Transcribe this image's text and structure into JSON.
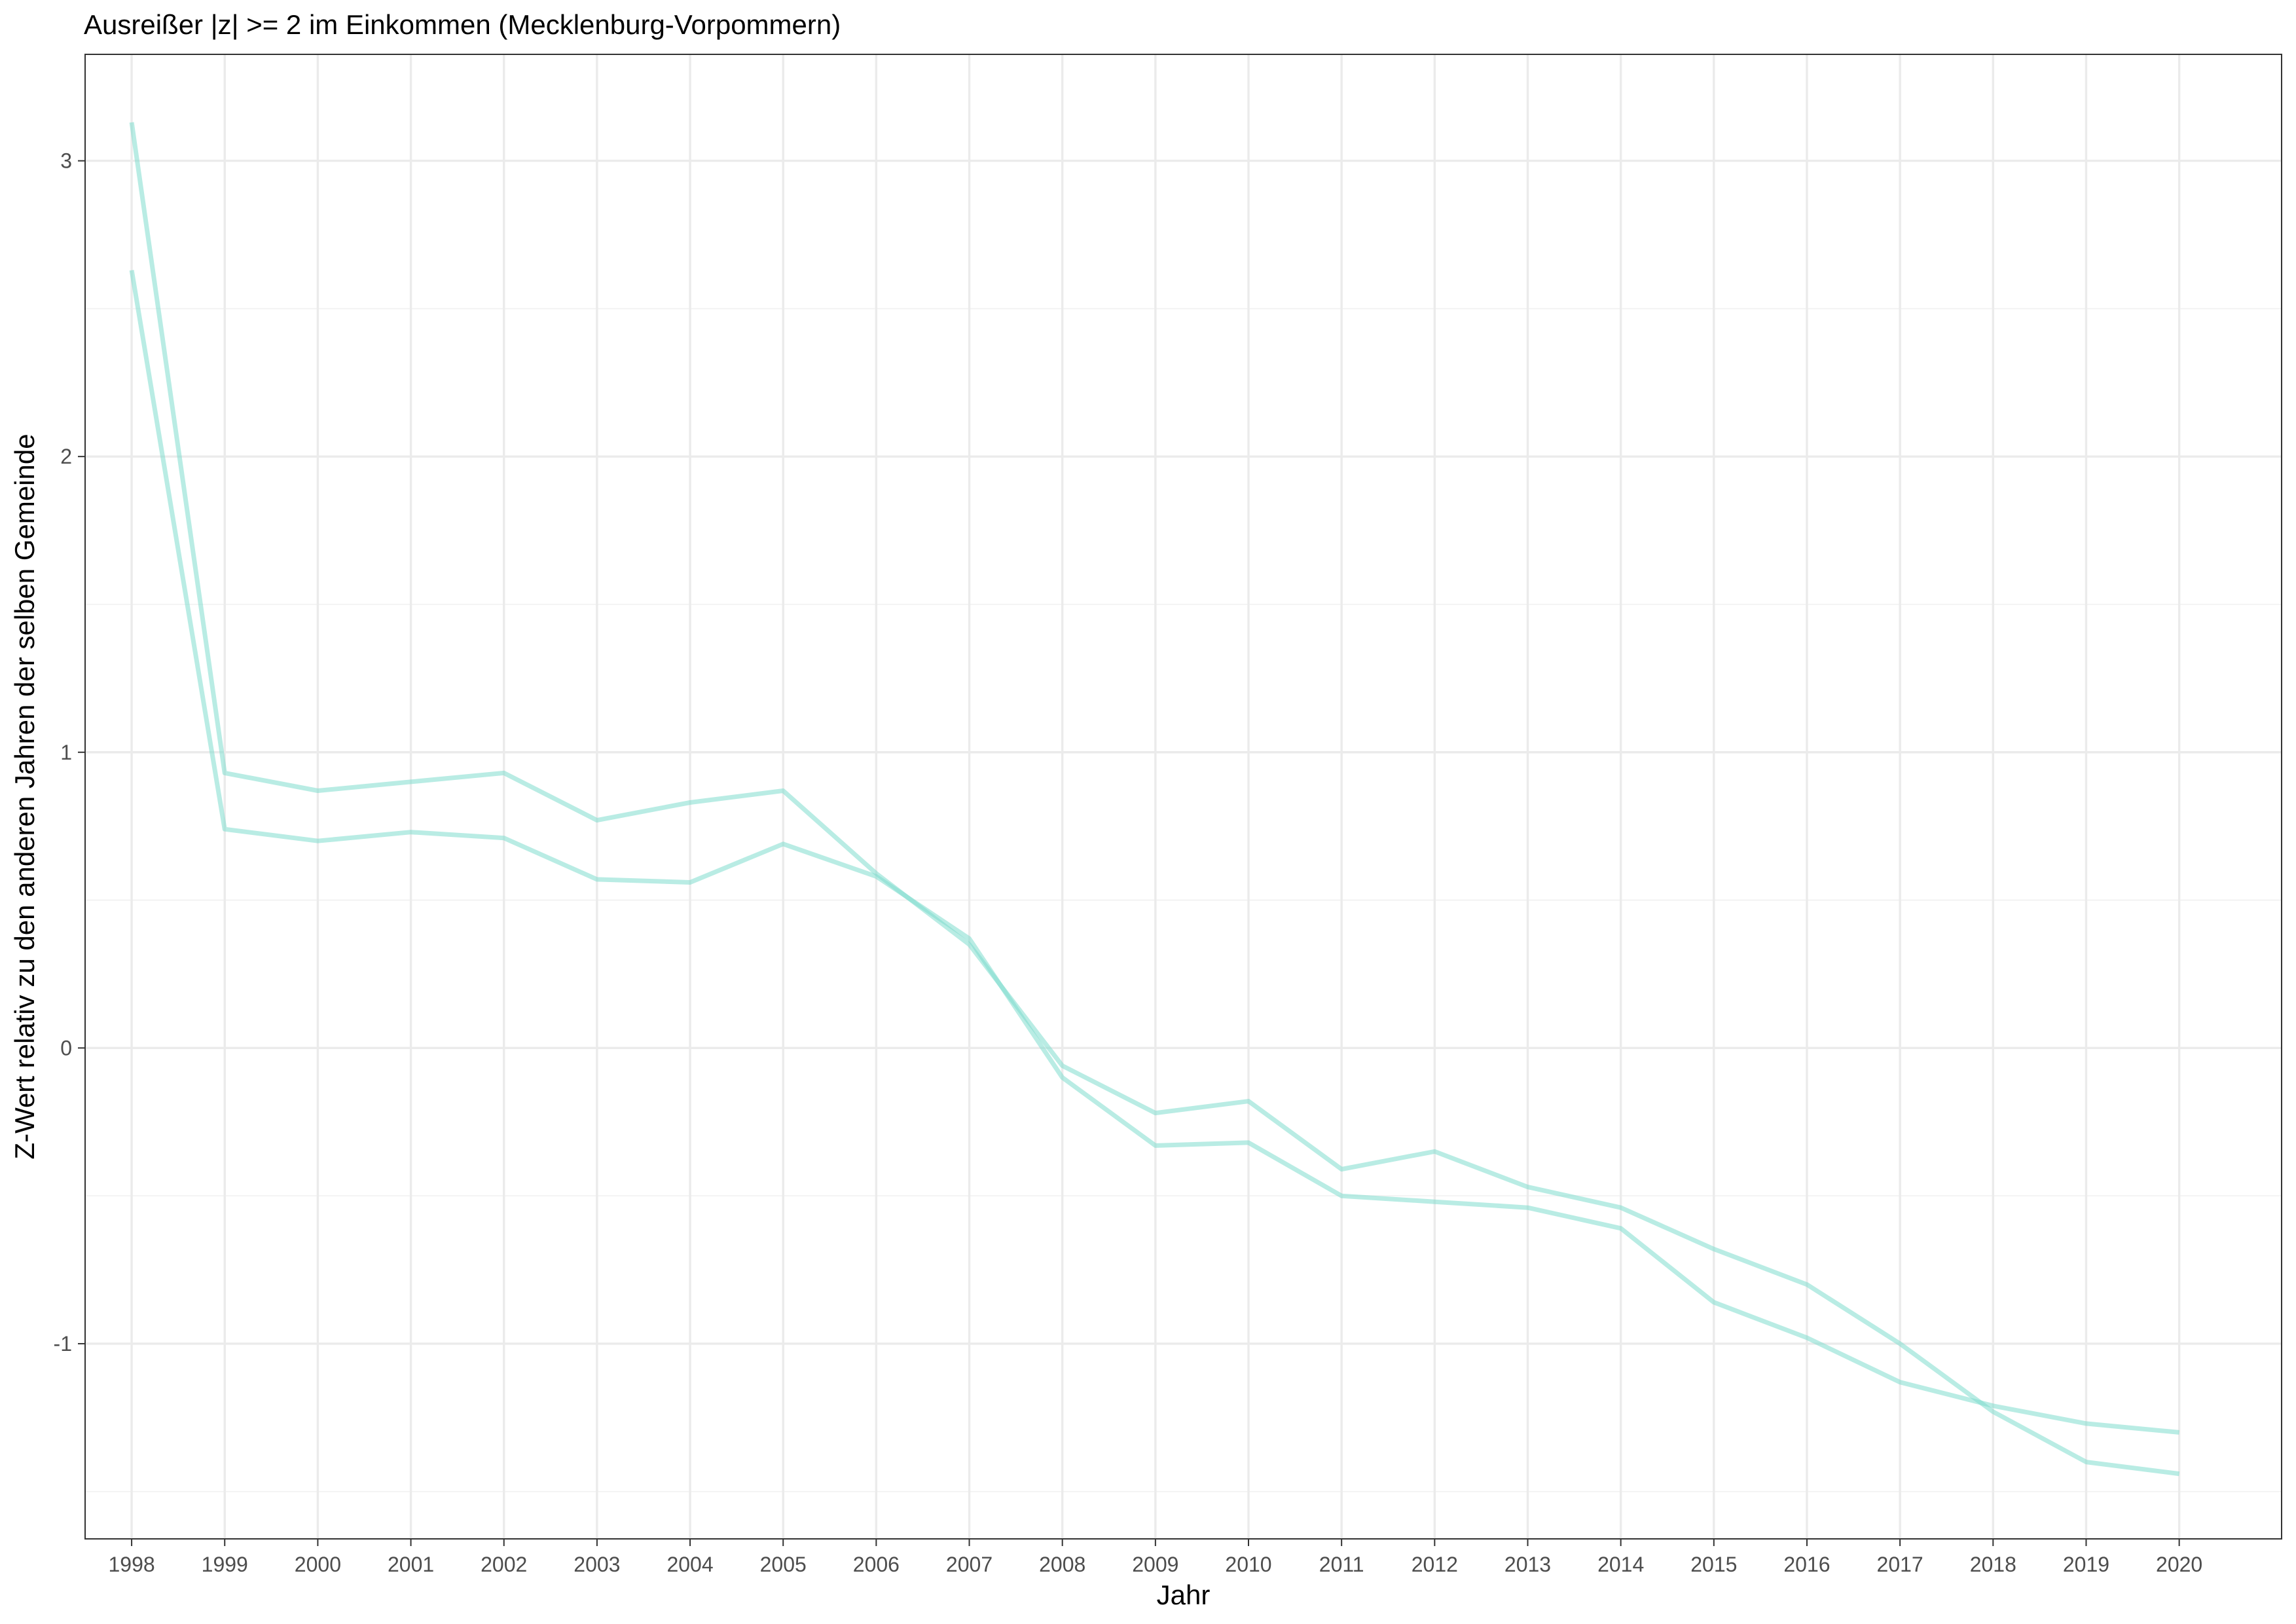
{
  "chart_data": {
    "type": "line",
    "title": "Ausreißer |z| >= 2 im Einkommen (Mecklenburg-Vorpommern)",
    "xlabel": "Jahr",
    "ylabel": "Z-Wert relativ zu den anderen Jahren der selben Gemeinde",
    "x": [
      1998,
      1999,
      2000,
      2001,
      2002,
      2003,
      2004,
      2005,
      2006,
      2007,
      2008,
      2009,
      2010,
      2011,
      2012,
      2013,
      2014,
      2015,
      2016,
      2017,
      2018,
      2019,
      2020
    ],
    "x_tick_labels": [
      "1998",
      "1999",
      "2000",
      "2001",
      "2002",
      "2003",
      "2004",
      "2005",
      "2006",
      "2007",
      "2008",
      "2009",
      "2010",
      "2011",
      "2012",
      "2013",
      "2014",
      "2015",
      "2016",
      "2017",
      "2018",
      "2019",
      "2020"
    ],
    "y_ticks": [
      -1,
      0,
      1,
      2,
      3
    ],
    "y_tick_labels": [
      "-1",
      "0",
      "1",
      "2",
      "3"
    ],
    "xlim": [
      1997.5,
      2021.1
    ],
    "ylim": [
      -1.66,
      3.36
    ],
    "grid": true,
    "legend": "none",
    "line_color": "#7fdccd",
    "line_opacity": 0.55,
    "series": [
      {
        "values": [
          3.13,
          0.93,
          0.87,
          0.9,
          0.93,
          0.77,
          0.83,
          0.87,
          0.59,
          0.35,
          -0.06,
          -0.22,
          -0.18,
          -0.41,
          -0.35,
          -0.47,
          -0.54,
          -0.68,
          -0.8,
          -1.0,
          -1.23,
          -1.4,
          -1.44
        ]
      },
      {
        "values": [
          2.63,
          0.74,
          0.7,
          0.73,
          0.71,
          0.57,
          0.56,
          0.69,
          0.58,
          0.37,
          -0.1,
          -0.33,
          -0.32,
          -0.5,
          -0.52,
          -0.54,
          -0.61,
          -0.86,
          -0.98,
          -1.13,
          -1.21,
          -1.27,
          -1.3
        ]
      }
    ]
  }
}
